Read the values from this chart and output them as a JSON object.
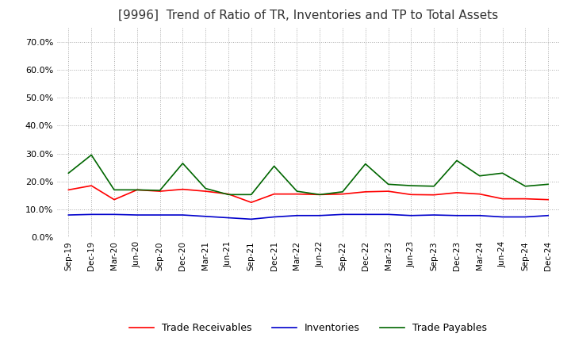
{
  "title": "[9996]  Trend of Ratio of TR, Inventories and TP to Total Assets",
  "title_fontsize": 11,
  "background_color": "#ffffff",
  "grid_color": "#aaaaaa",
  "ylim": [
    0.0,
    0.75
  ],
  "yticks": [
    0.0,
    0.1,
    0.2,
    0.3,
    0.4,
    0.5,
    0.6,
    0.7
  ],
  "x_labels": [
    "Sep-19",
    "Dec-19",
    "Mar-20",
    "Jun-20",
    "Sep-20",
    "Dec-20",
    "Mar-21",
    "Jun-21",
    "Sep-21",
    "Dec-21",
    "Mar-22",
    "Jun-22",
    "Sep-22",
    "Dec-22",
    "Mar-23",
    "Jun-23",
    "Sep-23",
    "Dec-23",
    "Mar-24",
    "Jun-24",
    "Sep-24",
    "Dec-24"
  ],
  "trade_receivables": [
    0.17,
    0.185,
    0.135,
    0.17,
    0.165,
    0.172,
    0.165,
    0.155,
    0.125,
    0.155,
    0.155,
    0.153,
    0.155,
    0.163,
    0.165,
    0.153,
    0.152,
    0.16,
    0.155,
    0.138,
    0.138,
    0.135
  ],
  "inventories": [
    0.08,
    0.082,
    0.082,
    0.08,
    0.08,
    0.08,
    0.075,
    0.07,
    0.065,
    0.073,
    0.078,
    0.078,
    0.082,
    0.082,
    0.082,
    0.078,
    0.08,
    0.078,
    0.078,
    0.073,
    0.073,
    0.078
  ],
  "trade_payables": [
    0.23,
    0.295,
    0.17,
    0.17,
    0.168,
    0.265,
    0.175,
    0.153,
    0.153,
    0.255,
    0.165,
    0.153,
    0.163,
    0.263,
    0.19,
    0.185,
    0.183,
    0.275,
    0.22,
    0.23,
    0.183,
    0.19
  ],
  "tr_color": "#ff0000",
  "inv_color": "#0000cc",
  "tp_color": "#006600",
  "line_width": 1.2
}
